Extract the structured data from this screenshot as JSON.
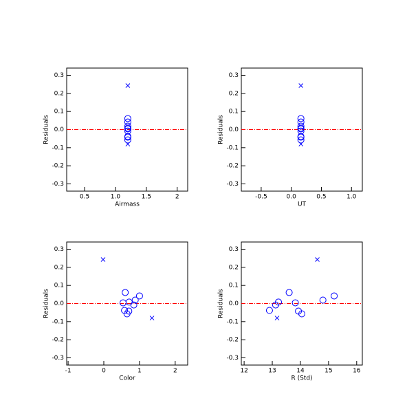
{
  "chart_data": [
    {
      "type": "scatter",
      "xlabel": "Airmass",
      "ylabel": "Residuals",
      "xlim": [
        0.21,
        2.17
      ],
      "ylim": [
        -0.34,
        0.34
      ],
      "xticks": [
        0.5,
        {
          "value": 1,
          "label": "1.0"
        },
        1.5,
        2.0
      ],
      "yticks": [
        -0.3,
        -0.2,
        -0.1,
        {
          "value": 0,
          "label": "0.0"
        },
        0.1,
        0.2,
        0.3
      ],
      "reference_line": 0,
      "reference_color": "#ff0000",
      "series": [
        {
          "marker": "circle",
          "color": "#0000ff",
          "x": [
            1.2,
            1.2,
            1.2,
            1.2,
            1.2,
            1.2,
            1.2,
            1.2,
            1.2
          ],
          "values": [
            0.061,
            0.042,
            0.019,
            0.008,
            0.004,
            -0.008,
            -0.038,
            -0.042,
            -0.057
          ]
        },
        {
          "marker": "x",
          "color": "#0000ff",
          "x": [
            1.2,
            1.2
          ],
          "values": [
            0.243,
            -0.08
          ]
        }
      ]
    },
    {
      "type": "scatter",
      "xlabel": "UT",
      "ylabel": "Residuals",
      "xlim": [
        -0.83,
        1.18
      ],
      "ylim": [
        -0.34,
        0.34
      ],
      "xticks": [
        -0.5,
        {
          "value": 0,
          "label": "0.0"
        },
        0.5,
        {
          "value": 1,
          "label": "1.0"
        }
      ],
      "yticks": [
        -0.3,
        -0.2,
        -0.1,
        {
          "value": 0,
          "label": "0.0"
        },
        0.1,
        0.2,
        0.3
      ],
      "reference_line": 0,
      "reference_color": "#ff0000",
      "series": [
        {
          "marker": "circle",
          "color": "#0000ff",
          "x": [
            0.16,
            0.16,
            0.16,
            0.16,
            0.16,
            0.16,
            0.16,
            0.16,
            0.16
          ],
          "values": [
            0.061,
            0.042,
            0.019,
            0.008,
            0.004,
            -0.008,
            -0.038,
            -0.042,
            -0.057
          ]
        },
        {
          "marker": "x",
          "color": "#0000ff",
          "x": [
            0.16,
            0.16
          ],
          "values": [
            0.243,
            -0.08
          ]
        }
      ]
    },
    {
      "type": "scatter",
      "xlabel": "Color",
      "ylabel": "Residuals",
      "xlim": [
        -1.04,
        2.35
      ],
      "ylim": [
        -0.34,
        0.34
      ],
      "xticks": [
        -1,
        0,
        1,
        2
      ],
      "yticks": [
        -0.3,
        -0.2,
        -0.1,
        {
          "value": 0,
          "label": "0.0"
        },
        0.1,
        0.2,
        0.3
      ],
      "reference_line": 0,
      "reference_color": "#ff0000",
      "series": [
        {
          "marker": "circle",
          "color": "#0000ff",
          "x": [
            0.6,
            1.0,
            0.88,
            0.71,
            0.54,
            0.84,
            0.58,
            0.7,
            0.65
          ],
          "values": [
            0.061,
            0.042,
            0.019,
            0.008,
            0.004,
            -0.008,
            -0.038,
            -0.042,
            -0.057
          ]
        },
        {
          "marker": "x",
          "color": "#0000ff",
          "x": [
            -0.02,
            1.35
          ],
          "values": [
            0.243,
            -0.08
          ]
        }
      ]
    },
    {
      "type": "scatter",
      "xlabel": "R (Std)",
      "ylabel": "Residuals",
      "xlim": [
        11.9,
        16.2
      ],
      "ylim": [
        -0.34,
        0.34
      ],
      "xticks": [
        12,
        13,
        14,
        15,
        16
      ],
      "yticks": [
        -0.3,
        -0.2,
        -0.1,
        {
          "value": 0,
          "label": "0.0"
        },
        0.1,
        0.2,
        0.3
      ],
      "reference_line": 0,
      "reference_color": "#ff0000",
      "series": [
        {
          "marker": "circle",
          "color": "#0000ff",
          "x": [
            13.6,
            15.2,
            14.8,
            13.22,
            13.82,
            13.12,
            12.9,
            13.93,
            14.05
          ],
          "values": [
            0.061,
            0.042,
            0.019,
            0.008,
            0.004,
            -0.008,
            -0.038,
            -0.042,
            -0.057
          ]
        },
        {
          "marker": "x",
          "color": "#0000ff",
          "x": [
            14.6,
            13.17
          ],
          "values": [
            0.243,
            -0.08
          ]
        }
      ]
    }
  ]
}
